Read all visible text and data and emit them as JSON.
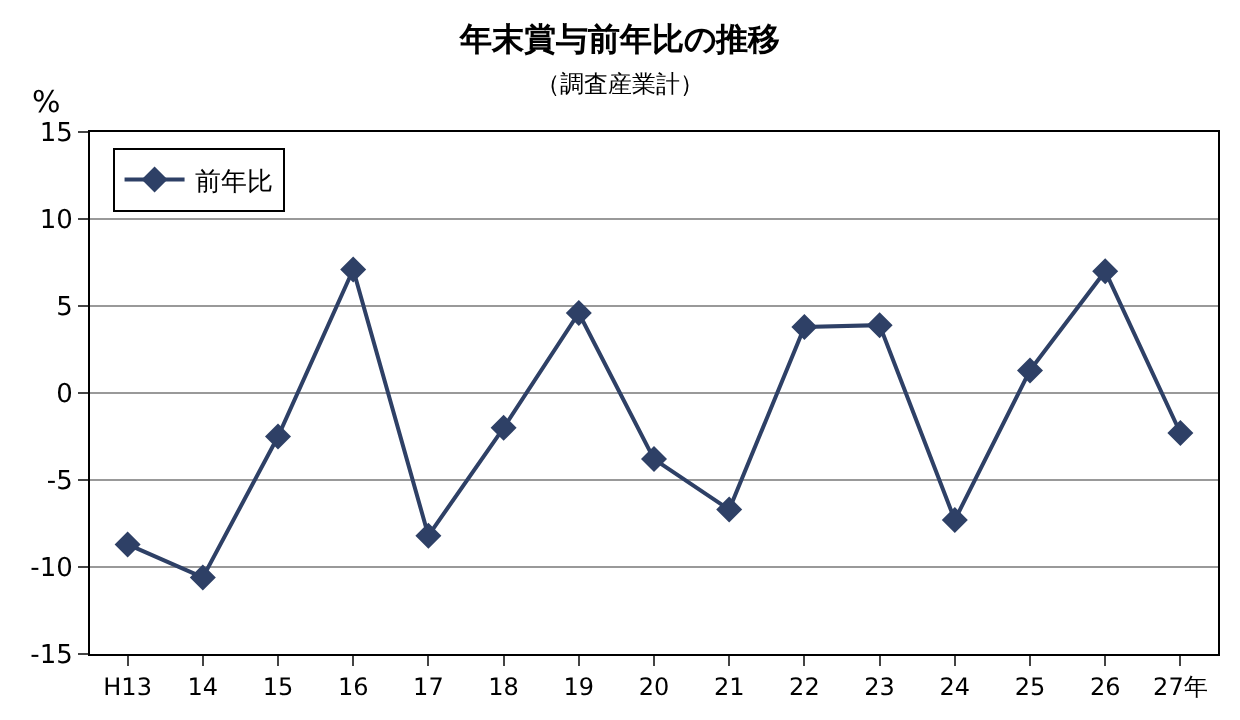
{
  "chart_data": {
    "type": "line",
    "title": "年末賞与前年比の推移",
    "subtitle": "（調査産業計）",
    "ylabel": "%",
    "categories": [
      "H13",
      "14",
      "15",
      "16",
      "17",
      "18",
      "19",
      "20",
      "21",
      "22",
      "23",
      "24",
      "25",
      "26",
      "27年"
    ],
    "series": [
      {
        "name": "前年比",
        "color": "#2e4066",
        "values": [
          -8.7,
          -10.6,
          -2.5,
          7.1,
          -8.2,
          -2.0,
          4.6,
          -3.8,
          -6.7,
          3.8,
          3.9,
          -7.3,
          1.3,
          7.0,
          -2.3
        ]
      }
    ],
    "ylim": [
      -15,
      15
    ],
    "yticks": [
      -15,
      -10,
      -5,
      0,
      5,
      10,
      15
    ],
    "grid": "y",
    "legend": "top left",
    "marker": "diamond",
    "line_style": "solid"
  }
}
